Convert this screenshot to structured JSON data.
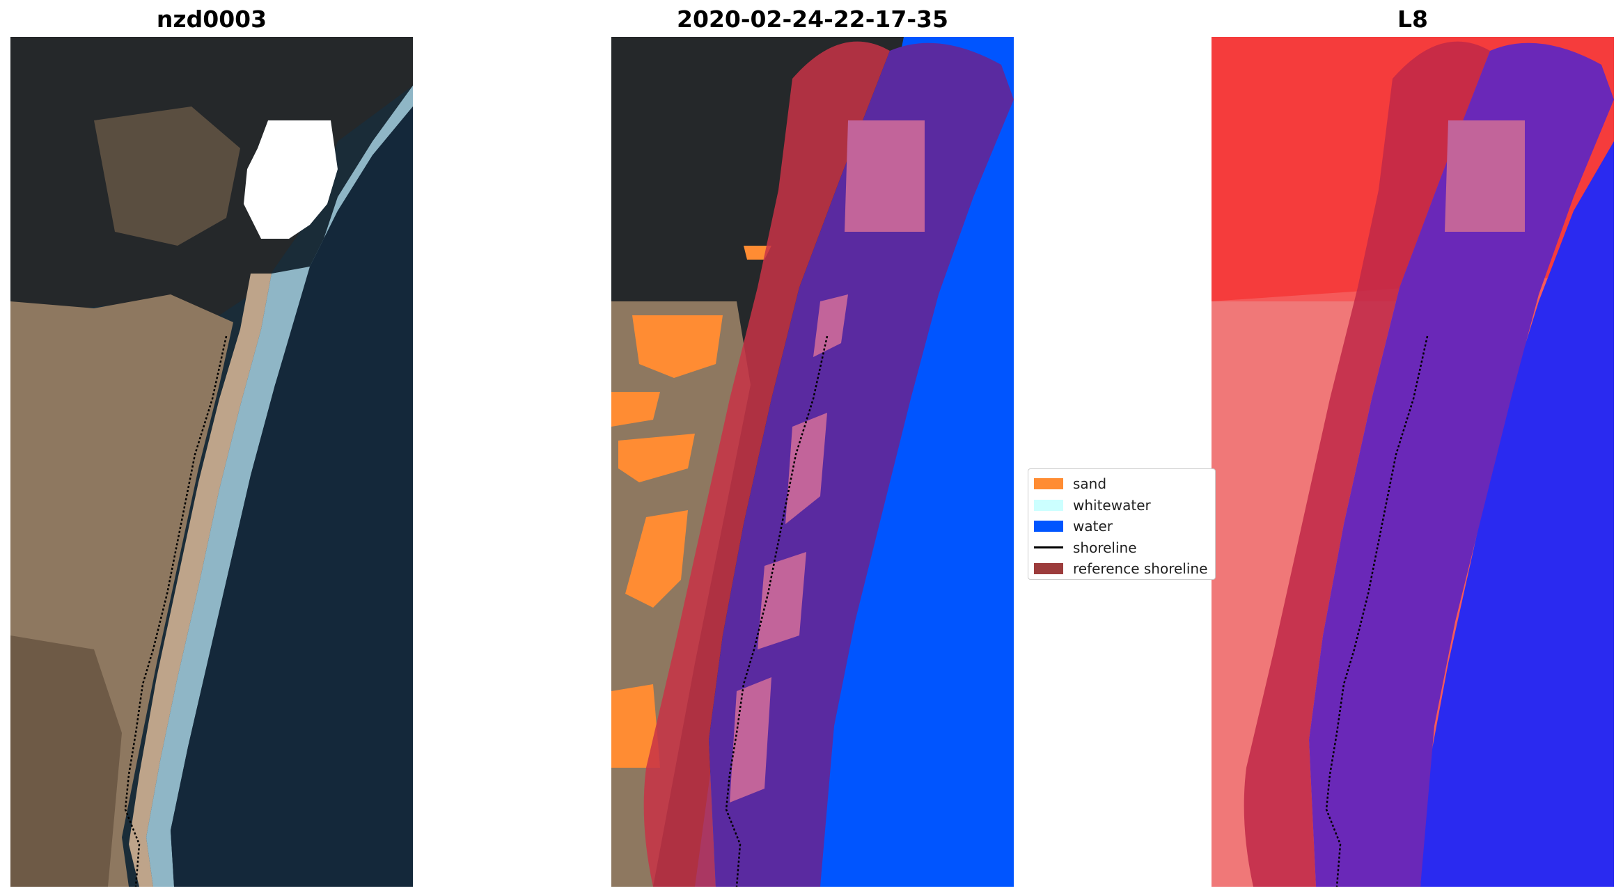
{
  "figure": {
    "panels": [
      {
        "title": "nzd0003"
      },
      {
        "title": "2020-02-24-22-17-35"
      },
      {
        "title": "L8"
      }
    ]
  },
  "legend": {
    "items": [
      {
        "label": "sand",
        "color": "#ff8c33",
        "kind": "patch"
      },
      {
        "label": "whitewater",
        "color": "#ccffff",
        "kind": "patch"
      },
      {
        "label": "water",
        "color": "#0055ff",
        "kind": "patch"
      },
      {
        "label": "shoreline",
        "color": "#000000",
        "kind": "line"
      },
      {
        "label": "reference shoreline",
        "color": "#8b1a1a",
        "kind": "patch"
      }
    ]
  },
  "colors": {
    "land_dark": "#25282a",
    "land_tan": "#8e7860",
    "beach": "#bea48a",
    "ocean": "#14283a",
    "surf": "#8fb6c6",
    "cloud_mask": "#ffffff",
    "buffer_red": "#c83246",
    "buffer_purple": "#5a2aa0",
    "mask_pink": "#c2649a",
    "l8_land": "#f55a5a",
    "l8_water": "#2a2af0"
  }
}
